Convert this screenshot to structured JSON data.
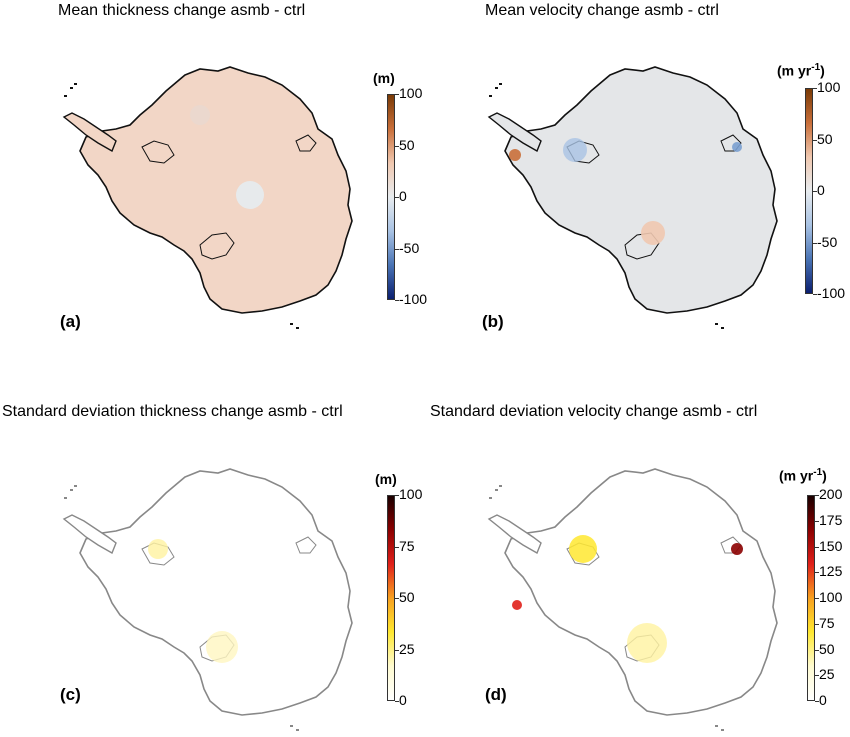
{
  "panels": {
    "a": {
      "title": "Mean thickness change asmb - ctrl",
      "label": "(a)",
      "colorbar": {
        "unit": "(m)",
        "ticks": [
          "100",
          "50",
          "0",
          "-50",
          "-100"
        ],
        "scheme": "diverging",
        "colors": [
          "#7a3a06",
          "#c96f3a",
          "#f0c8b0",
          "#e8ecef",
          "#a9c3e4",
          "#4a74b5",
          "#0b1f70"
        ]
      },
      "fill": "#f2d6c6",
      "outline": "#111111"
    },
    "b": {
      "title": "Mean velocity change asmb - ctrl",
      "label": "(b)",
      "colorbar": {
        "unit_main": "(m yr",
        "unit_sup": "-1",
        "unit_close": ")",
        "ticks": [
          "100",
          "50",
          "0",
          "-50",
          "-100"
        ],
        "scheme": "diverging",
        "colors": [
          "#7a3a06",
          "#c96f3a",
          "#f0c8b0",
          "#e8ecef",
          "#a9c3e4",
          "#4a74b5",
          "#0b1f70"
        ]
      },
      "fill": "#e4e6e8",
      "outline": "#111111"
    },
    "c": {
      "title": "Standard deviation thickness change asmb - ctrl",
      "label": "(c)",
      "colorbar": {
        "unit": "(m)",
        "ticks": [
          "100",
          "75",
          "50",
          "25",
          "0"
        ],
        "scheme": "sequential",
        "colors": [
          "#1a0000",
          "#8b0000",
          "#e0201a",
          "#f7a020",
          "#ffe830",
          "#fffbd0",
          "#ffffff"
        ]
      },
      "fill": "#ffffff",
      "outline": "#888888"
    },
    "d": {
      "title": "Standard deviation velocity change asmb - ctrl",
      "label": "(d)",
      "colorbar": {
        "unit_main": "(m yr",
        "unit_sup": "-1",
        "unit_close": ")",
        "ticks": [
          "200",
          "175",
          "150",
          "125",
          "100",
          "75",
          "50",
          "25",
          "0"
        ],
        "scheme": "sequential",
        "colors": [
          "#1a0000",
          "#8b0000",
          "#e0201a",
          "#f7a020",
          "#ffe830",
          "#fffbd0",
          "#ffffff"
        ]
      },
      "fill": "#ffffff",
      "outline": "#888888"
    }
  }
}
